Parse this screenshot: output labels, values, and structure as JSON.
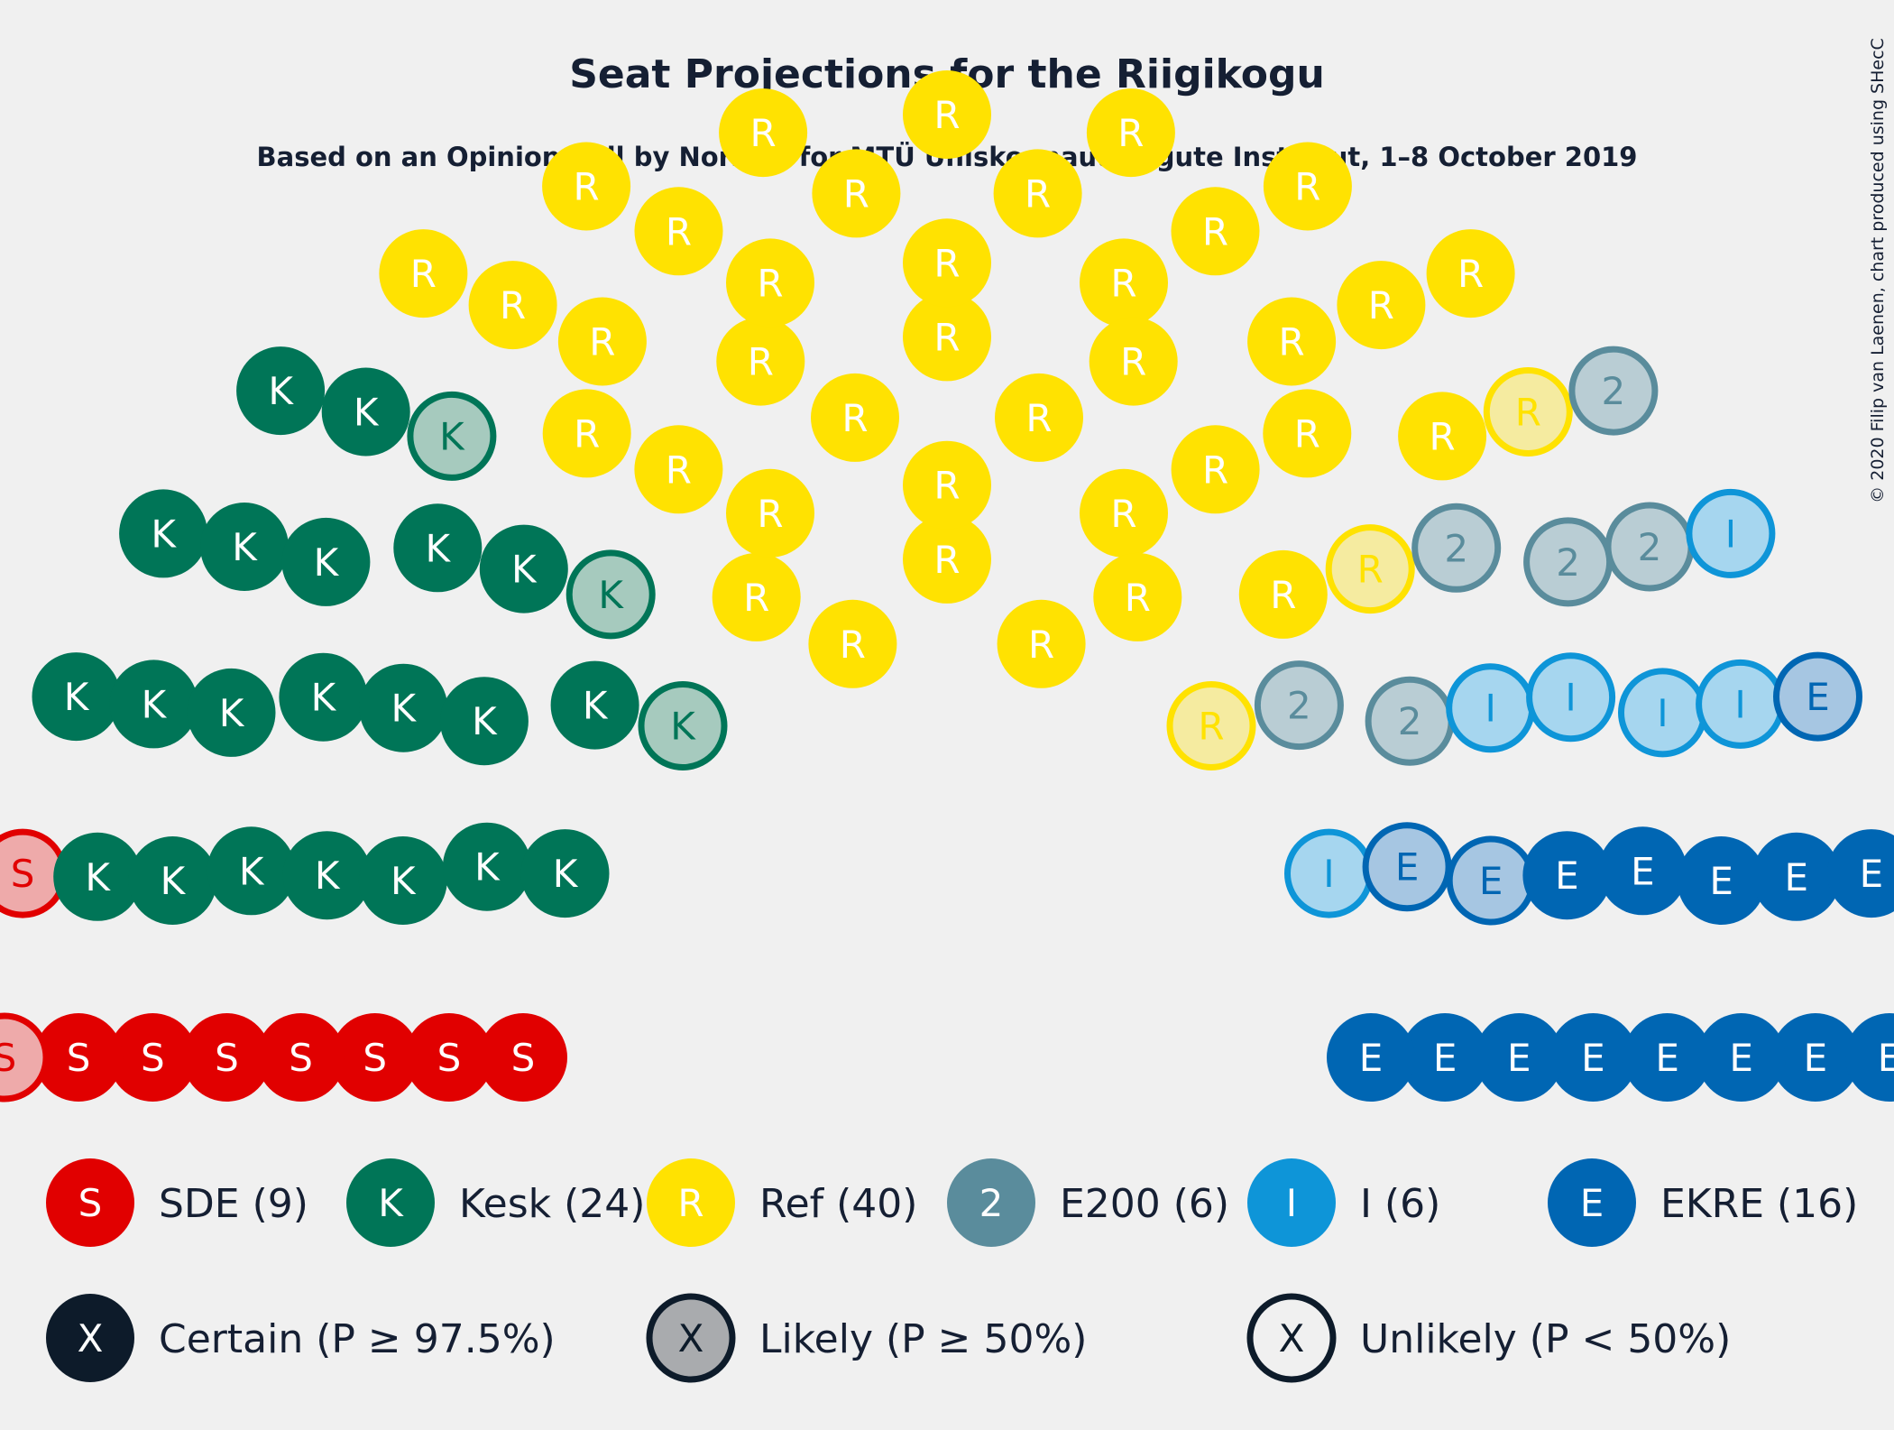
{
  "chart_data": {
    "type": "parliament",
    "title": "Seat Projections for the Riigikogu",
    "subtitle": "Based on an Opinion Poll by Norstat for MTÜ Ühiskonnauuringute Instituut, 1–8 October 2019",
    "copyright": "© 2020 Filip van Laenen, chart produced using SHecC",
    "total_seats": 101,
    "parties": [
      {
        "key": "sde",
        "letter": "S",
        "name": "SDE",
        "legend": "SDE (9)",
        "seats": 9,
        "likely": 2,
        "unlikely": 0,
        "color": "#e10000",
        "light": "#eeaaaa"
      },
      {
        "key": "kesk",
        "letter": "K",
        "name": "Kesk",
        "legend": "Kesk (24)",
        "seats": 24,
        "likely": 3,
        "unlikely": 0,
        "color": "#007557",
        "light": "#a6cabe"
      },
      {
        "key": "ref",
        "letter": "R",
        "name": "Ref",
        "legend": "Ref (40)",
        "seats": 40,
        "likely": 3,
        "unlikely": 0,
        "color": "#ffe201",
        "light": "#f5eba0"
      },
      {
        "key": "e200",
        "letter": "2",
        "name": "E200",
        "legend": "E200 (6)",
        "seats": 6,
        "likely": 6,
        "unlikely": 0,
        "color": "#5a8c9c",
        "light": "#b9cdd4"
      },
      {
        "key": "i",
        "letter": "I",
        "name": "I",
        "legend": "I (6)",
        "seats": 6,
        "likely": 6,
        "unlikely": 0,
        "color": "#0e95d8",
        "light": "#a6d6ef"
      },
      {
        "key": "ekre",
        "letter": "E",
        "name": "EKRE",
        "legend": "EKRE (16)",
        "seats": 16,
        "likely": 3,
        "unlikely": 0,
        "color": "#0066b3",
        "light": "#a6c6e2"
      }
    ],
    "certainty_legend": [
      {
        "key": "certain",
        "letter": "X",
        "label": "Certain (P ≥ 97.5%)"
      },
      {
        "key": "likely",
        "letter": "X",
        "label": "Likely (P ≥ 50%)"
      },
      {
        "key": "unlikely",
        "letter": "X",
        "label": "Unlikely (P < 50%)"
      }
    ],
    "certainty_colors": {
      "certain": "#0d1b2a",
      "likely": "#a9abae",
      "unlikely": "#f0f0f0"
    }
  }
}
